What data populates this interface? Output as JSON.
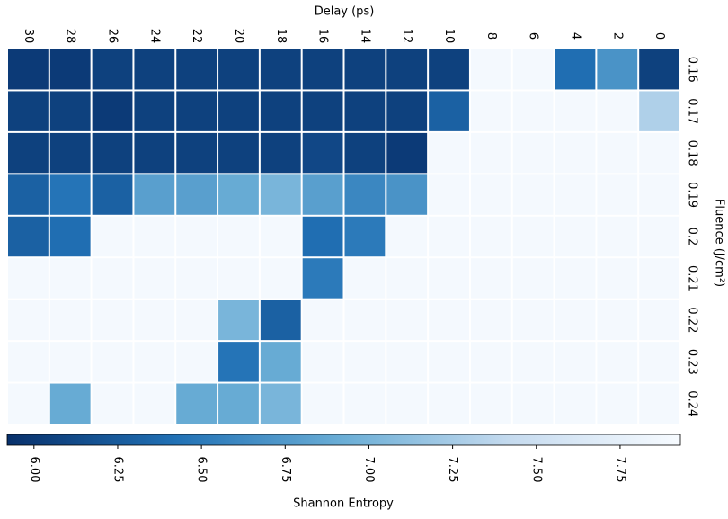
{
  "chart_data": {
    "type": "heatmap",
    "x_label": "Delay (ps)",
    "y_label": "Fluence (J/cm²)",
    "colorbar_label": "Shannon Entropy",
    "x": [
      30,
      28,
      26,
      24,
      22,
      20,
      18,
      16,
      14,
      12,
      10,
      8,
      6,
      4,
      2,
      0
    ],
    "y": [
      0.16,
      0.17,
      0.18,
      0.19,
      0.2,
      0.21,
      0.22,
      0.23,
      0.24
    ],
    "values": [
      [
        6.0,
        6.0,
        6.05,
        6.05,
        6.05,
        6.05,
        6.05,
        6.05,
        6.05,
        6.05,
        6.05,
        7.9,
        7.9,
        6.4,
        6.7,
        6.05
      ],
      [
        6.05,
        6.05,
        6.0,
        6.05,
        6.05,
        6.05,
        6.05,
        6.05,
        6.05,
        6.05,
        6.3,
        7.9,
        7.9,
        7.9,
        7.9,
        7.3
      ],
      [
        6.05,
        6.05,
        6.05,
        6.05,
        6.05,
        6.05,
        6.05,
        6.1,
        6.05,
        6.0,
        7.9,
        7.9,
        7.9,
        7.9,
        7.9,
        7.9
      ],
      [
        6.3,
        6.45,
        6.3,
        6.8,
        6.8,
        6.9,
        7.0,
        6.8,
        6.6,
        6.7,
        7.9,
        7.9,
        7.9,
        7.9,
        7.9,
        7.9
      ],
      [
        6.3,
        6.4,
        7.9,
        7.9,
        7.9,
        7.9,
        7.9,
        6.4,
        6.5,
        7.9,
        7.9,
        7.9,
        7.9,
        7.9,
        7.9,
        7.9
      ],
      [
        7.9,
        7.9,
        7.9,
        7.9,
        7.9,
        7.9,
        7.9,
        6.5,
        7.9,
        7.9,
        7.9,
        7.9,
        7.9,
        7.9,
        7.9,
        7.9
      ],
      [
        7.9,
        7.9,
        7.9,
        7.9,
        7.9,
        7.0,
        6.3,
        7.9,
        7.9,
        7.9,
        7.9,
        7.9,
        7.9,
        7.9,
        7.9,
        7.9
      ],
      [
        7.9,
        7.9,
        7.9,
        7.9,
        7.9,
        6.45,
        6.9,
        7.9,
        7.9,
        7.9,
        7.9,
        7.9,
        7.9,
        7.9,
        7.9,
        7.9
      ],
      [
        7.9,
        6.9,
        7.9,
        7.9,
        6.9,
        6.9,
        7.0,
        7.9,
        7.9,
        7.9,
        7.9,
        7.9,
        7.9,
        7.9,
        7.9,
        7.9
      ]
    ],
    "clim": [
      5.92,
      7.93
    ],
    "cticks": [
      {
        "value": 6,
        "label": "6.00"
      },
      {
        "value": 6.25,
        "label": "6.25"
      },
      {
        "value": 6.5,
        "label": "6.50"
      },
      {
        "value": 6.75,
        "label": "6.75"
      },
      {
        "value": 7,
        "label": "7.00"
      },
      {
        "value": 7.25,
        "label": "7.25"
      },
      {
        "value": 7.5,
        "label": "7.50"
      },
      {
        "value": 7.75,
        "label": "7.75"
      }
    ],
    "colormap": [
      "#08306b",
      "#2171b5",
      "#6baed6",
      "#c6dbef",
      "#f7fbff"
    ]
  }
}
